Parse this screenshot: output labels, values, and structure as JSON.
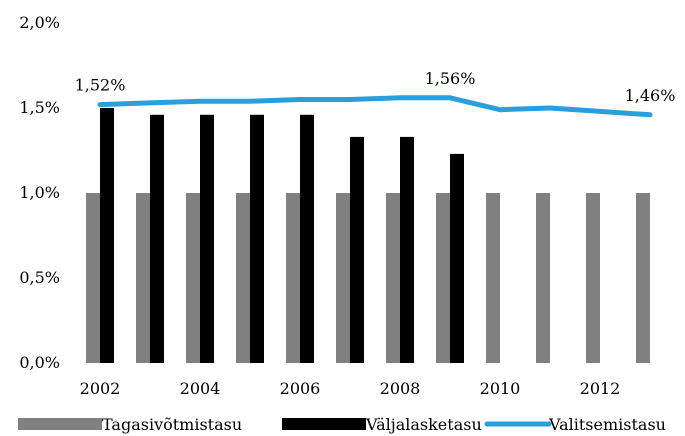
{
  "chart_data": {
    "type": "bar",
    "x": [
      2002,
      2003,
      2004,
      2005,
      2006,
      2007,
      2008,
      2009,
      2010,
      2011,
      2012,
      2013
    ],
    "xtick_labels": [
      "2002",
      "2004",
      "2006",
      "2008",
      "2010",
      "2012"
    ],
    "xtick_values": [
      2002,
      2004,
      2006,
      2008,
      2010,
      2012
    ],
    "ylim": [
      0,
      2.0
    ],
    "yticks": [
      {
        "value": 0.0,
        "label": "0,0%"
      },
      {
        "value": 0.5,
        "label": "0,5%"
      },
      {
        "value": 1.0,
        "label": "1,0%"
      },
      {
        "value": 1.5,
        "label": "1,5%"
      },
      {
        "value": 2.0,
        "label": "2,0%"
      }
    ],
    "grid": false,
    "legend_position": "bottom",
    "series": [
      {
        "name": "Tagasivõtmistasu",
        "type": "bar",
        "color": "#808080",
        "values": [
          1.0,
          1.0,
          1.0,
          1.0,
          1.0,
          1.0,
          1.0,
          1.0,
          1.0,
          1.0,
          1.0,
          1.0
        ]
      },
      {
        "name": "Väljalasketasu",
        "type": "bar",
        "color": "#000000",
        "values": [
          1.5,
          1.46,
          1.46,
          1.46,
          1.46,
          1.33,
          1.33,
          1.23,
          null,
          null,
          null,
          null
        ]
      },
      {
        "name": "Valitsemistasu",
        "type": "line",
        "color": "#2a9fdb",
        "values": [
          1.52,
          1.53,
          1.54,
          1.54,
          1.55,
          1.55,
          1.56,
          1.56,
          1.49,
          1.5,
          1.48,
          1.46
        ]
      }
    ],
    "annotations": [
      {
        "series": 2,
        "index": 0,
        "text": "1,52%"
      },
      {
        "series": 2,
        "index": 7,
        "text": "1,56%"
      },
      {
        "series": 2,
        "index": 11,
        "text": "1,46%"
      }
    ]
  }
}
